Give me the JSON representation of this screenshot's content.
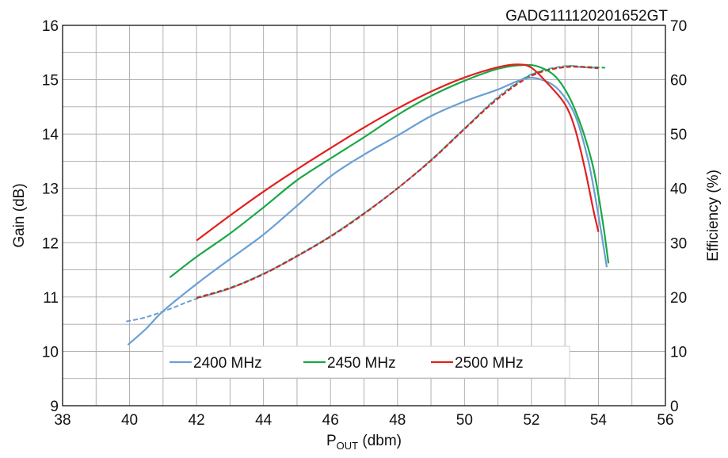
{
  "chart_data": {
    "type": "line",
    "code": "GADG111120201652GT",
    "xlabel_main": "P",
    "xlabel_sub": "OUT",
    "xlabel_unit": " (dbm)",
    "ylabel": "Gain (dB)",
    "y2label": "Efficiency (%)",
    "xlim": [
      38,
      56
    ],
    "ylim": [
      9,
      16
    ],
    "y2lim": [
      0,
      70
    ],
    "x_ticks": [
      38,
      40,
      42,
      44,
      46,
      48,
      50,
      52,
      54,
      56
    ],
    "y_ticks": [
      9,
      10,
      11,
      12,
      13,
      14,
      15,
      16
    ],
    "y2_ticks": [
      0,
      10,
      20,
      30,
      40,
      50,
      60,
      70
    ],
    "grid": true,
    "minor_grid_x_step": 1,
    "minor_grid_y_step": 0.5,
    "legend_placement": "bottom-center",
    "series": [
      {
        "name": "2400 MHz",
        "color": "#6a9fd4",
        "gain": [
          [
            39.95,
            10.12
          ],
          [
            40.5,
            10.42
          ],
          [
            41,
            10.74
          ],
          [
            42,
            11.24
          ],
          [
            43,
            11.7
          ],
          [
            44,
            12.15
          ],
          [
            45,
            12.68
          ],
          [
            46,
            13.22
          ],
          [
            47,
            13.62
          ],
          [
            48,
            13.97
          ],
          [
            49,
            14.33
          ],
          [
            50,
            14.6
          ],
          [
            51,
            14.82
          ],
          [
            51.8,
            15.02
          ],
          [
            52.3,
            15.0
          ],
          [
            52.8,
            14.82
          ],
          [
            53.3,
            14.35
          ],
          [
            53.7,
            13.5
          ],
          [
            54.0,
            12.5
          ],
          [
            54.25,
            11.55
          ]
        ],
        "efficiency": [
          [
            39.9,
            15.5
          ],
          [
            40.5,
            16.3
          ],
          [
            41.2,
            17.8
          ],
          [
            42,
            19.7
          ],
          [
            43,
            21.6
          ],
          [
            44,
            24.3
          ],
          [
            45,
            27.5
          ],
          [
            46,
            31.2
          ],
          [
            47,
            35.4
          ],
          [
            48,
            40.0
          ],
          [
            49,
            45.2
          ],
          [
            50,
            51.0
          ],
          [
            51,
            56.8
          ],
          [
            52,
            61.0
          ],
          [
            53,
            62.5
          ],
          [
            53.5,
            62.3
          ],
          [
            54,
            62.2
          ]
        ]
      },
      {
        "name": "2450 MHz",
        "color": "#19a846",
        "gain": [
          [
            41.2,
            11.36
          ],
          [
            42,
            11.74
          ],
          [
            43,
            12.17
          ],
          [
            44,
            12.65
          ],
          [
            45,
            13.15
          ],
          [
            46,
            13.55
          ],
          [
            47,
            13.94
          ],
          [
            48,
            14.35
          ],
          [
            49,
            14.7
          ],
          [
            50,
            14.98
          ],
          [
            51,
            15.2
          ],
          [
            51.8,
            15.27
          ],
          [
            52.3,
            15.22
          ],
          [
            52.8,
            15.0
          ],
          [
            53.3,
            14.45
          ],
          [
            53.8,
            13.5
          ],
          [
            54.1,
            12.5
          ],
          [
            54.3,
            11.62
          ]
        ],
        "efficiency": [
          [
            42,
            19.9
          ],
          [
            43,
            21.7
          ],
          [
            44,
            24.3
          ],
          [
            45,
            27.6
          ],
          [
            46,
            31.2
          ],
          [
            47,
            35.4
          ],
          [
            48,
            40.0
          ],
          [
            49,
            45.2
          ],
          [
            50,
            51.0
          ],
          [
            51,
            56.6
          ],
          [
            52,
            60.9
          ],
          [
            53,
            62.4
          ],
          [
            53.5,
            62.4
          ],
          [
            54.2,
            62.2
          ]
        ]
      },
      {
        "name": "2500 MHz",
        "color": "#e0201e",
        "gain": [
          [
            42,
            12.04
          ],
          [
            43,
            12.5
          ],
          [
            44,
            12.94
          ],
          [
            45,
            13.35
          ],
          [
            46,
            13.74
          ],
          [
            47,
            14.12
          ],
          [
            48,
            14.47
          ],
          [
            49,
            14.78
          ],
          [
            50,
            15.04
          ],
          [
            51,
            15.23
          ],
          [
            51.6,
            15.28
          ],
          [
            52.0,
            15.22
          ],
          [
            52.5,
            14.92
          ],
          [
            53.0,
            14.55
          ],
          [
            53.3,
            14.1
          ],
          [
            53.6,
            13.35
          ],
          [
            53.85,
            12.6
          ],
          [
            54.0,
            12.2
          ]
        ],
        "efficiency": [
          [
            42,
            19.8
          ],
          [
            43,
            21.6
          ],
          [
            44,
            24.2
          ],
          [
            45,
            27.5
          ],
          [
            46,
            31.1
          ],
          [
            47,
            35.3
          ],
          [
            48,
            40.0
          ],
          [
            49,
            45.1
          ],
          [
            50,
            50.9
          ],
          [
            51,
            56.5
          ],
          [
            52,
            60.7
          ],
          [
            53,
            62.3
          ],
          [
            54,
            62.1
          ]
        ]
      }
    ]
  }
}
